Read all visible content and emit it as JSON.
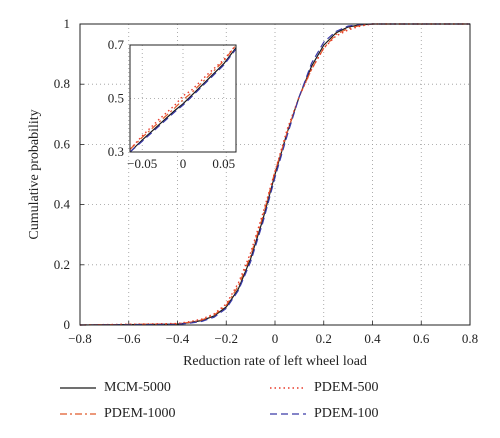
{
  "chart_data": {
    "type": "line",
    "xlabel": "Reduction rate of left wheel load",
    "ylabel": "Cumulative probability",
    "xlim": [
      -0.8,
      0.8
    ],
    "ylim": [
      0,
      1
    ],
    "xticks": [
      "−0.8",
      "−0.6",
      "−0.4",
      "−0.2",
      "0",
      "0.2",
      "0.4",
      "0.6",
      "0.8"
    ],
    "yticks": [
      "0",
      "0.2",
      "0.4",
      "0.6",
      "0.8",
      "1"
    ],
    "grid": true,
    "legend_position": "bottom",
    "series": [
      {
        "name": "MCM-5000",
        "color": "#1a1a1a",
        "dash": "solid",
        "x": [
          -0.8,
          -0.4,
          -0.35,
          -0.3,
          -0.25,
          -0.2,
          -0.15,
          -0.1,
          -0.05,
          0,
          0.05,
          0.1,
          0.15,
          0.2,
          0.25,
          0.3,
          0.35,
          0.4,
          0.8
        ],
        "y": [
          0,
          0.003,
          0.008,
          0.015,
          0.03,
          0.06,
          0.12,
          0.22,
          0.35,
          0.5,
          0.64,
          0.76,
          0.86,
          0.93,
          0.97,
          0.99,
          0.997,
          1,
          1
        ]
      },
      {
        "name": "PDEM-1000",
        "color": "#e05a2a",
        "dash": "dashdot",
        "x": [
          -0.8,
          -0.4,
          -0.35,
          -0.3,
          -0.25,
          -0.2,
          -0.15,
          -0.1,
          -0.05,
          0,
          0.05,
          0.1,
          0.15,
          0.2,
          0.25,
          0.3,
          0.35,
          0.4,
          0.8
        ],
        "y": [
          0,
          0.004,
          0.009,
          0.017,
          0.033,
          0.065,
          0.13,
          0.23,
          0.36,
          0.51,
          0.64,
          0.76,
          0.85,
          0.92,
          0.965,
          0.985,
          0.995,
          1,
          1
        ]
      },
      {
        "name": "PDEM-500",
        "color": "#e83a2a",
        "dash": "dotted",
        "x": [
          -0.8,
          -0.4,
          -0.35,
          -0.3,
          -0.25,
          -0.2,
          -0.15,
          -0.1,
          -0.05,
          0,
          0.05,
          0.1,
          0.15,
          0.2,
          0.25,
          0.3,
          0.35,
          0.4,
          0.8
        ],
        "y": [
          0,
          0.005,
          0.011,
          0.02,
          0.037,
          0.07,
          0.14,
          0.24,
          0.37,
          0.51,
          0.65,
          0.76,
          0.85,
          0.92,
          0.96,
          0.98,
          0.993,
          1,
          1
        ]
      },
      {
        "name": "PDEM-100",
        "color": "#3a3aa8",
        "dash": "dashed",
        "x": [
          -0.8,
          -0.4,
          -0.35,
          -0.3,
          -0.25,
          -0.2,
          -0.15,
          -0.1,
          -0.05,
          0,
          0.05,
          0.1,
          0.15,
          0.2,
          0.25,
          0.3,
          0.35,
          0.4,
          0.8
        ],
        "y": [
          0,
          0.002,
          0.006,
          0.012,
          0.026,
          0.055,
          0.115,
          0.21,
          0.34,
          0.49,
          0.63,
          0.76,
          0.87,
          0.94,
          0.975,
          0.993,
          0.999,
          1,
          1
        ]
      }
    ],
    "inset": {
      "xlim": [
        -0.065,
        0.065
      ],
      "ylim": [
        0.3,
        0.7
      ],
      "xticks": [
        "−0.05",
        "0",
        "0.05"
      ],
      "xtick_values": [
        -0.05,
        0,
        0.05
      ],
      "yticks": [
        "0.3",
        "0.5",
        "0.7"
      ],
      "ytick_values": [
        0.3,
        0.5,
        0.7
      ],
      "series": [
        {
          "name": "MCM-5000",
          "x": [
            -0.065,
            -0.05,
            -0.03,
            -0.01,
            0,
            0.01,
            0.03,
            0.05,
            0.065
          ],
          "y": [
            0.3,
            0.345,
            0.4,
            0.455,
            0.48,
            0.51,
            0.57,
            0.63,
            0.69
          ]
        },
        {
          "name": "PDEM-1000",
          "x": [
            -0.065,
            -0.05,
            -0.03,
            -0.01,
            0,
            0.01,
            0.03,
            0.05,
            0.065
          ],
          "y": [
            0.31,
            0.355,
            0.41,
            0.465,
            0.495,
            0.52,
            0.58,
            0.64,
            0.7
          ]
        },
        {
          "name": "PDEM-500",
          "x": [
            -0.065,
            -0.05,
            -0.03,
            -0.01,
            0,
            0.01,
            0.03,
            0.05,
            0.065
          ],
          "y": [
            0.31,
            0.36,
            0.42,
            0.475,
            0.51,
            0.53,
            0.59,
            0.645,
            0.7
          ]
        },
        {
          "name": "PDEM-100",
          "x": [
            -0.065,
            -0.05,
            -0.03,
            -0.01,
            0,
            0.01,
            0.03,
            0.05,
            0.065
          ],
          "y": [
            0.3,
            0.34,
            0.395,
            0.45,
            0.475,
            0.505,
            0.565,
            0.625,
            0.685
          ]
        }
      ]
    }
  }
}
